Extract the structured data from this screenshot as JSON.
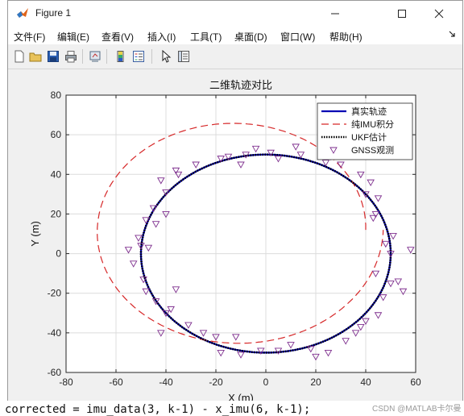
{
  "window": {
    "title": "Figure 1",
    "menu": [
      "文件(F)",
      "编辑(E)",
      "查看(V)",
      "插入(I)",
      "工具(T)",
      "桌面(D)",
      "窗口(W)",
      "帮助(H)"
    ],
    "toolbar_icons": [
      "new-figure-icon",
      "open-file-icon",
      "save-icon",
      "print-icon",
      "link-plot-icon",
      "insert-colorbar-icon",
      "insert-legend-icon",
      "edit-plot-icon",
      "property-inspector-icon"
    ]
  },
  "background": {
    "code_line": "corrected = imu_data(3, k-1) - x_imu(6, k-1);",
    "watermark": "CSDN @MATLAB卡尔曼"
  },
  "chart_data": {
    "type": "line",
    "title": "二维轨迹对比",
    "xlabel": "X (m)",
    "ylabel": "Y (m)",
    "xlim": [
      -80,
      60
    ],
    "ylim": [
      -60,
      80
    ],
    "xticks": [
      -80,
      -60,
      -40,
      -20,
      0,
      20,
      40,
      60
    ],
    "yticks": [
      -60,
      -40,
      -20,
      0,
      20,
      40,
      60,
      80
    ],
    "grid": true,
    "legend_position": "top-right",
    "series": [
      {
        "name": "真实轨迹",
        "kind": "circle",
        "center": [
          0,
          0
        ],
        "radius": 50,
        "color": "#0000b4",
        "style": "solid"
      },
      {
        "name": "纯IMU积分",
        "kind": "spiral",
        "center": [
          -12,
          12
        ],
        "radius_start": 52,
        "radius_end": 59,
        "color": "#d62728",
        "style": "dashed"
      },
      {
        "name": "UKF估计",
        "kind": "circle",
        "center": [
          0,
          0
        ],
        "radius": 50,
        "color": "#000000",
        "style": "dotted"
      },
      {
        "name": "GNSS观测",
        "kind": "points",
        "color": "#7e2f8e",
        "marker": "triangle-down",
        "points": [
          [
            50,
            0
          ],
          [
            48,
            5
          ],
          [
            51,
            9
          ],
          [
            58,
            2
          ],
          [
            53,
            -14
          ],
          [
            55,
            -19
          ],
          [
            44,
            20
          ],
          [
            45,
            28
          ],
          [
            43,
            18
          ],
          [
            40,
            30
          ],
          [
            42,
            36
          ],
          [
            38,
            40
          ],
          [
            30,
            45
          ],
          [
            24,
            46
          ],
          [
            26,
            49
          ],
          [
            12,
            54
          ],
          [
            14,
            50
          ],
          [
            5,
            48
          ],
          [
            2,
            51
          ],
          [
            -8,
            50
          ],
          [
            -10,
            45
          ],
          [
            -4,
            53
          ],
          [
            -15,
            49
          ],
          [
            -18,
            48
          ],
          [
            -28,
            45
          ],
          [
            -35,
            40
          ],
          [
            -42,
            37
          ],
          [
            -36,
            42
          ],
          [
            -40,
            31
          ],
          [
            -45,
            23
          ],
          [
            -48,
            17
          ],
          [
            -44,
            15
          ],
          [
            -40,
            20
          ],
          [
            -51,
            8
          ],
          [
            -50,
            4
          ],
          [
            -47,
            3
          ],
          [
            -55,
            2
          ],
          [
            -53,
            -5
          ],
          [
            -49,
            -13
          ],
          [
            -48,
            -19
          ],
          [
            -44,
            -24
          ],
          [
            -38,
            -28
          ],
          [
            -36,
            -18
          ],
          [
            -40,
            -30
          ],
          [
            -42,
            -40
          ],
          [
            -31,
            -36
          ],
          [
            -25,
            -40
          ],
          [
            -20,
            -42
          ],
          [
            -12,
            -42
          ],
          [
            -18,
            -50
          ],
          [
            -10,
            -51
          ],
          [
            -2,
            -49
          ],
          [
            5,
            -49
          ],
          [
            10,
            -46
          ],
          [
            18,
            -48
          ],
          [
            20,
            -52
          ],
          [
            25,
            -50
          ],
          [
            32,
            -44
          ],
          [
            36,
            -40
          ],
          [
            40,
            -34
          ],
          [
            45,
            -31
          ],
          [
            47,
            -22
          ],
          [
            50,
            -15
          ],
          [
            44,
            -10
          ],
          [
            38,
            -37
          ]
        ]
      }
    ]
  }
}
